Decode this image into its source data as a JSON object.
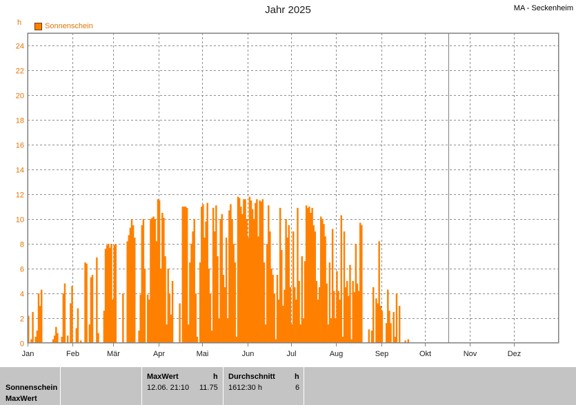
{
  "header": {
    "title": "Jahr 2025",
    "station": "MA - Seckenheim",
    "unit": "h"
  },
  "legend": {
    "label": "Sonnenschein",
    "color": "#ff8000"
  },
  "summary": {
    "row_label_1": "Sonnenschein",
    "row_label_2": "MaxWert",
    "maxwert_header": "MaxWert",
    "maxwert_unit": "h",
    "maxwert_time": "12.06.  21:10",
    "maxwert_value": "11.75",
    "durchschnitt_header": "Durchschnitt",
    "durchschnitt_unit": "h",
    "durchschnitt_total": "1612:30 h",
    "durchschnitt_value": "6"
  },
  "chart_data": {
    "type": "bar",
    "title": "Jahr 2025",
    "ylabel": "h",
    "ylim": [
      0,
      25
    ],
    "yticks": [
      0,
      2,
      4,
      6,
      8,
      10,
      12,
      14,
      16,
      18,
      20,
      22,
      24
    ],
    "month_labels": [
      "Jan",
      "Feb",
      "Mär",
      "Apr",
      "Mai",
      "Jun",
      "Jul",
      "Aug",
      "Sep",
      "Okt",
      "Nov",
      "Dez"
    ],
    "days_in_year": 365,
    "data_days": 289,
    "grid": true,
    "legend_position": "top-left",
    "series": [
      {
        "name": "Sonnenschein",
        "color": "#ff8000",
        "values": [
          2.2,
          0.0,
          0.3,
          2.5,
          0.0,
          0.5,
          1.0,
          4.0,
          3.0,
          4.3,
          0.0,
          0.0,
          0.0,
          0.0,
          0.0,
          0.0,
          0.0,
          0.3,
          0.6,
          1.3,
          0.8,
          0.0,
          0.0,
          0.5,
          4.0,
          4.8,
          0.0,
          0.6,
          0.0,
          3.2,
          4.6,
          0.0,
          0.0,
          1.2,
          2.8,
          0.0,
          0.2,
          0.0,
          0.0,
          6.5,
          6.4,
          0.0,
          1.5,
          5.3,
          5.5,
          0.0,
          0.0,
          6.9,
          0.8,
          0.0,
          0.0,
          0.0,
          2.6,
          7.6,
          7.9,
          8.0,
          7.7,
          8.0,
          3.5,
          7.9,
          8.0,
          0.0,
          0.0,
          0.0,
          0.0,
          4.0,
          0.0,
          0.0,
          8.2,
          8.7,
          9.3,
          10.0,
          9.5,
          8.5,
          0.0,
          0.0,
          1.0,
          3.9,
          9.5,
          10.0,
          6.0,
          0.0,
          3.9,
          3.5,
          10.0,
          10.1,
          10.2,
          10.0,
          8.2,
          11.6,
          11.5,
          6.0,
          10.5,
          10.1,
          7.0,
          1.5,
          6.0,
          4.0,
          2.3,
          5.0,
          0.0,
          0.0,
          0.0,
          0.0,
          3.2,
          0.0,
          11.0,
          11.0,
          11.0,
          10.9,
          1.5,
          6.5,
          8.0,
          9.0,
          10.0,
          4.0,
          0.5,
          0.0,
          6.5,
          11.0,
          11.2,
          8.5,
          9.8,
          11.3,
          6.0,
          4.0,
          1.0,
          10.9,
          9.0,
          11.1,
          7.0,
          2.0,
          10.0,
          10.4,
          5.5,
          4.5,
          8.5,
          2.0,
          10.7,
          11.2,
          10.0,
          8.0,
          6.5,
          0.5,
          11.8,
          11.7,
          11.0,
          10.4,
          11.6,
          11.6,
          10.0,
          8.5,
          11.8,
          11.5,
          10.8,
          10.0,
          11.3,
          11.6,
          8.6,
          11.5,
          11.4,
          11.6,
          6.5,
          1.5,
          8.0,
          11.1,
          9.0,
          6.0,
          5.5,
          4.0,
          0.3,
          5.5,
          3.5,
          10.9,
          7.5,
          3.0,
          4.3,
          10.0,
          8.5,
          9.5,
          4.5,
          1.5,
          9.0,
          4.5,
          3.5,
          10.9,
          5.0,
          1.5,
          7.0,
          2.0,
          6.6,
          11.1,
          10.9,
          11.0,
          10.5,
          10.9,
          9.5,
          9.0,
          5.0,
          3.5,
          4.5,
          10.2,
          10.0,
          9.6,
          8.6,
          4.8,
          1.5,
          6.5,
          2.0,
          9.2,
          4.2,
          2.0,
          5.8,
          4.2,
          3.5,
          10.3,
          0.5,
          9.0,
          4.5,
          5.0,
          3.8,
          6.3,
          0.3,
          5.0,
          4.1,
          8.0,
          4.8,
          4.2,
          9.7,
          9.5,
          0.0,
          0.0,
          0.0,
          0.0,
          1.1,
          0.0,
          1.0,
          4.5,
          0.0,
          3.6,
          3.2,
          8.2,
          3.0,
          2.6,
          0.0,
          0.0,
          1.6,
          4.3,
          2.6,
          1.6,
          0.0,
          2.5,
          0.5,
          4.0,
          0.0,
          3.0,
          0.0,
          0.0,
          0.0,
          0.2,
          0.0,
          0.3,
          0.0,
          0.0,
          0.0,
          0.0,
          0.0,
          0.0,
          0.0,
          0.0,
          0.0,
          0.0,
          0.0,
          0.0,
          0.0,
          0.0,
          0.0,
          0.0
        ]
      }
    ]
  }
}
